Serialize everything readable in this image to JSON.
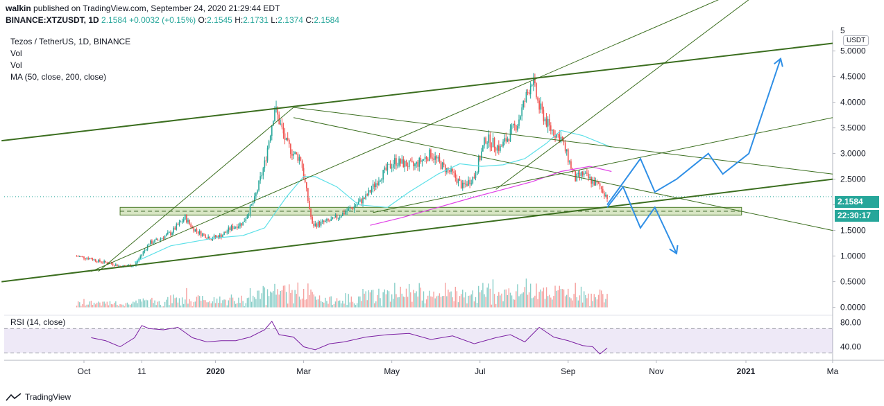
{
  "header": {
    "author": "walkin",
    "published_text": " published on TradingView.com, September 24, 2020 21:29:44 EDT",
    "symbol": "BINANCE:XTZUSDT, 1D",
    "last": "2.1584",
    "change": "+0.0032 (+0.15%)",
    "o_label": "O:",
    "o": "2.1545",
    "h_label": "H:",
    "h": "2.1731",
    "l_label": "L:",
    "l": "2.1374",
    "c_label": "C:",
    "c": "2.1584"
  },
  "legend": {
    "title": "Tezos / TetherUS, 1D, BINANCE",
    "vol1": "Vol",
    "vol2": "Vol",
    "ma": "MA (50, close, 200, close)",
    "rsi": "RSI (14, close)"
  },
  "footer": {
    "brand": "TradingView"
  },
  "currency_badge": "USDT",
  "price_tag": "2.1584",
  "countdown_tag": "22:30:17",
  "chart_data": {
    "type": "candlestick",
    "symbol": "XTZUSDT",
    "timeframe": "1D",
    "exchange": "BINANCE",
    "price_axis": {
      "range": [
        -0.1,
        5.4
      ],
      "ticks": [
        0.0,
        0.5,
        1.0,
        1.5,
        2.0,
        2.5,
        3.0,
        3.5,
        4.0,
        4.5,
        5.0
      ],
      "tick_labels": [
        "0.0000",
        "0.5000",
        "1.0000",
        "1.5000",
        "2.0000",
        "2.5000",
        "3.0000",
        "3.5000",
        "4.0000",
        "4.5000",
        "5.0000"
      ],
      "top_partial_label": "5"
    },
    "rsi_axis": {
      "ticks": [
        40,
        80
      ],
      "tick_labels": [
        "40.00",
        "80.00"
      ],
      "bands": [
        30,
        70
      ]
    },
    "x_axis": {
      "labels": [
        "Oct",
        "11",
        "2020",
        "Mar",
        "May",
        "Jul",
        "Sep",
        "Nov",
        "2021",
        "Ma"
      ],
      "label_days": [
        0,
        40,
        91,
        152,
        213,
        274,
        335,
        396,
        458,
        518
      ],
      "bold": [
        false,
        false,
        true,
        false,
        false,
        false,
        false,
        false,
        true,
        false
      ]
    },
    "price_path_days": [
      -5,
      5,
      10,
      20,
      25,
      35,
      45,
      50,
      60,
      70,
      75,
      80,
      88,
      95,
      102,
      110,
      118,
      125,
      132,
      140,
      145,
      150,
      158,
      165,
      172,
      180,
      186,
      195,
      205,
      215,
      228,
      240,
      248,
      255,
      262,
      270,
      278,
      288,
      300,
      310,
      315,
      322,
      330,
      335,
      340,
      345,
      352,
      357,
      362
    ],
    "price_path_values": [
      1.0,
      0.95,
      0.9,
      0.85,
      0.8,
      0.82,
      1.25,
      1.3,
      1.45,
      1.75,
      1.55,
      1.45,
      1.35,
      1.4,
      1.55,
      1.65,
      2.1,
      2.8,
      3.9,
      3.2,
      3.0,
      2.9,
      1.6,
      1.65,
      1.7,
      1.85,
      1.95,
      2.15,
      2.55,
      2.85,
      2.75,
      3.0,
      2.75,
      2.6,
      2.35,
      2.55,
      3.3,
      3.1,
      3.6,
      4.45,
      3.9,
      3.5,
      3.3,
      2.9,
      2.5,
      2.6,
      2.45,
      2.35,
      2.16
    ],
    "ma50_days": [
      35,
      60,
      90,
      110,
      125,
      140,
      152,
      160,
      175,
      190,
      210,
      225,
      245,
      260,
      275,
      290,
      305,
      320,
      330,
      345,
      365
    ],
    "ma50_values": [
      0.88,
      1.2,
      1.35,
      1.4,
      1.55,
      2.15,
      2.55,
      2.55,
      2.35,
      2.0,
      1.95,
      2.25,
      2.6,
      2.8,
      2.75,
      2.78,
      2.9,
      3.2,
      3.45,
      3.35,
      3.12
    ],
    "ma200_days": [
      198,
      220,
      245,
      270,
      290,
      310,
      330,
      350,
      365
    ],
    "ma200_values": [
      1.6,
      1.75,
      1.95,
      2.15,
      2.3,
      2.45,
      2.65,
      2.75,
      2.65
    ],
    "trendlines": [
      {
        "role": "channel-top",
        "d1": -57,
        "v1": 3.25,
        "d2": 518,
        "v2": 5.15,
        "weight": "thick"
      },
      {
        "role": "channel-bottom",
        "d1": -57,
        "v1": 0.5,
        "d2": 518,
        "v2": 2.5,
        "weight": "thick"
      },
      {
        "role": "rising-steep",
        "d1": 5,
        "v1": 0.7,
        "d2": 480,
        "v2": 6.5,
        "weight": "thin"
      },
      {
        "role": "descending-from-top",
        "d1": 145,
        "v1": 3.7,
        "d2": 518,
        "v2": 1.5,
        "weight": "thin"
      },
      {
        "role": "descending-upper",
        "d1": 145,
        "v1": 3.9,
        "d2": 518,
        "v2": 2.6,
        "weight": "thin"
      },
      {
        "role": "base-to-peak",
        "d1": 10,
        "v1": 0.7,
        "d2": 145,
        "v2": 3.9,
        "weight": "thin"
      },
      {
        "role": "mid-rising",
        "d1": 200,
        "v1": 1.85,
        "d2": 518,
        "v2": 3.7,
        "weight": "thin"
      },
      {
        "role": "sep-rising",
        "d1": 285,
        "v1": 2.3,
        "d2": 460,
        "v2": 6.0,
        "weight": "thin"
      }
    ],
    "support_zone": {
      "low": 1.8,
      "high": 1.95,
      "from_day": 25,
      "to_day": 455
    },
    "forecast_paths": [
      {
        "name": "bullish",
        "days": [
          362,
          385,
          395,
          410,
          432,
          442,
          460,
          482
        ],
        "values": [
          2.0,
          2.9,
          2.25,
          2.5,
          3.0,
          2.6,
          3.0,
          4.85
        ]
      },
      {
        "name": "bearish",
        "days": [
          362,
          373,
          385,
          395,
          410
        ],
        "values": [
          1.95,
          2.35,
          1.55,
          1.95,
          1.05
        ]
      }
    ],
    "volume_scale_note": "relative",
    "rsi_days": [
      5,
      15,
      25,
      35,
      40,
      45,
      55,
      65,
      75,
      85,
      95,
      105,
      115,
      125,
      130,
      135,
      145,
      152,
      160,
      170,
      180,
      195,
      210,
      225,
      240,
      255,
      270,
      285,
      295,
      305,
      315,
      325,
      335,
      345,
      352,
      357,
      362
    ],
    "rsi_values": [
      55,
      50,
      40,
      55,
      75,
      70,
      68,
      72,
      55,
      48,
      50,
      50,
      56,
      68,
      82,
      60,
      56,
      40,
      35,
      45,
      48,
      56,
      60,
      62,
      52,
      58,
      45,
      55,
      60,
      48,
      72,
      56,
      50,
      42,
      40,
      28,
      38
    ]
  }
}
